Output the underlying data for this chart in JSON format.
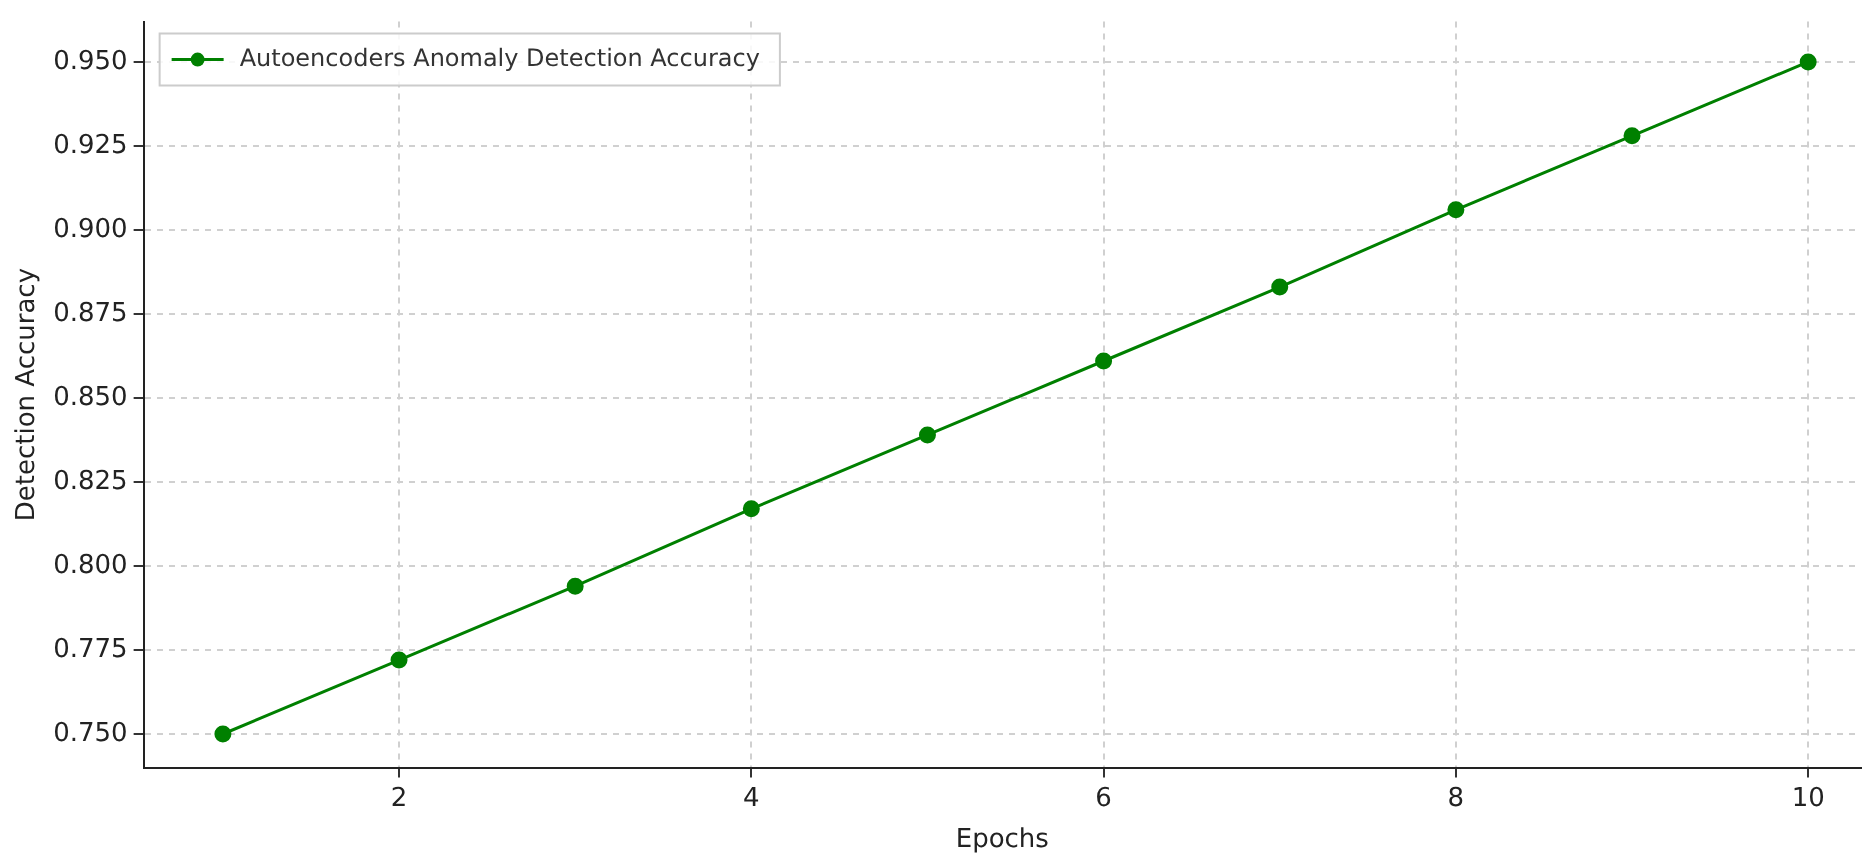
{
  "chart_data": {
    "type": "line",
    "xlabel": "Epochs",
    "ylabel": "Detection Accuracy",
    "x": [
      1,
      2,
      3,
      4,
      5,
      6,
      7,
      8,
      9,
      10
    ],
    "series": [
      {
        "name": "Autoencoders Anomaly Detection Accuracy",
        "color": "#008000",
        "values": [
          0.75,
          0.772,
          0.794,
          0.817,
          0.839,
          0.861,
          0.883,
          0.906,
          0.928,
          0.95
        ]
      }
    ],
    "xlim": [
      0.55,
      10.3
    ],
    "ylim": [
      0.74,
      0.962
    ],
    "xticks": [
      2,
      4,
      6,
      8,
      10
    ],
    "yticks": [
      {
        "value": 0.75,
        "label": "0.750"
      },
      {
        "value": 0.775,
        "label": "0.775"
      },
      {
        "value": 0.8,
        "label": "0.800"
      },
      {
        "value": 0.825,
        "label": "0.825"
      },
      {
        "value": 0.85,
        "label": "0.850"
      },
      {
        "value": 0.875,
        "label": "0.875"
      },
      {
        "value": 0.9,
        "label": "0.900"
      },
      {
        "value": 0.925,
        "label": "0.925"
      },
      {
        "value": 0.95,
        "label": "0.950"
      }
    ],
    "grid": true,
    "legend": "top left",
    "marker": "circle",
    "line_style": "solid"
  }
}
